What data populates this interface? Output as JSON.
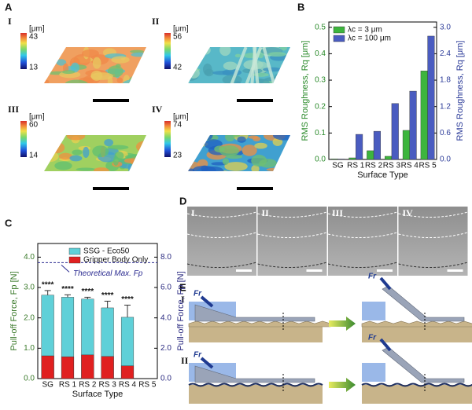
{
  "panels": {
    "A": {
      "label": "A",
      "maps": [
        {
          "label": "I",
          "unit": "[μm]",
          "max": 43,
          "min": 13
        },
        {
          "label": "II",
          "unit": "[μm]",
          "max": 56,
          "min": 42
        },
        {
          "label": "III",
          "unit": "[μm]",
          "max": 60,
          "min": 14
        },
        {
          "label": "IV",
          "unit": "[μm]",
          "max": 74,
          "min": 23
        }
      ]
    },
    "B": {
      "label": "B"
    },
    "C": {
      "label": "C"
    },
    "D": {
      "label": "D",
      "frames": [
        "I",
        "II",
        "III",
        "IV"
      ]
    },
    "E": {
      "label": "E",
      "rows": [
        {
          "label": "I",
          "forces": [
            "Fr",
            "Fr"
          ]
        },
        {
          "label": "II",
          "forces": [
            "Fr",
            "Fr"
          ]
        }
      ]
    }
  },
  "chart_data": [
    {
      "type": "bar",
      "barmode": "group",
      "categories": [
        "SG",
        "RS 1",
        "RS 2",
        "RS 3",
        "RS 4",
        "RS 5"
      ],
      "series": [
        {
          "name": "λc = 3 μm",
          "color": "#3db53d",
          "values": [
            0.002,
            0.006,
            0.033,
            0.012,
            0.11,
            0.335
          ]
        },
        {
          "name": "λc = 100 μm",
          "color": "#4a5cc0",
          "axis": "y2",
          "values": [
            0.01,
            0.57,
            0.64,
            1.27,
            1.55,
            2.8
          ]
        }
      ],
      "ylim": [
        0,
        0.52
      ],
      "yticks": [
        {
          "value": 0,
          "label": "0.0"
        },
        0.1,
        0.2,
        0.3,
        0.4,
        0.5
      ],
      "y2lim": [
        0,
        3.12
      ],
      "y2ticks": [
        {
          "value": 0,
          "label": "0.0"
        },
        0.6,
        1.2,
        1.8,
        2.4,
        {
          "value": 3,
          "label": "3.0"
        }
      ],
      "y_label": "RMS Roughness, Rq [μm]",
      "y2_label": "RMS Roughness, Rq [μm]",
      "x_label": "Surface Type",
      "legend": "upper left"
    },
    {
      "type": "bar",
      "barmode": "overlay",
      "categories": [
        "SG",
        "RS 1",
        "RS 2",
        "RS 3",
        "RS 4",
        "RS 5"
      ],
      "series": [
        {
          "name": "SSG - Eco50",
          "color": "#5fd0d8",
          "values": [
            2.75,
            2.68,
            2.62,
            2.33,
            2.02,
            0
          ],
          "errors": [
            0.15,
            0.08,
            0.06,
            0.22,
            0.4,
            null
          ]
        },
        {
          "name": "Gripper Body Only",
          "color": "#e02020",
          "values": [
            0.75,
            0.72,
            0.78,
            0.73,
            0.42,
            0
          ]
        }
      ],
      "significance": [
        "****",
        "****",
        "****",
        "****",
        "****",
        null
      ],
      "reference_line": {
        "value": 3.82,
        "label": "Theoretical Max. Fp"
      },
      "ylim": [
        0,
        4.45
      ],
      "yticks": [
        {
          "value": 0,
          "label": "0.0"
        },
        {
          "value": 1,
          "label": "1.0"
        },
        {
          "value": 2,
          "label": "2.0"
        },
        {
          "value": 3,
          "label": "3.0"
        },
        {
          "value": 4,
          "label": "4.0"
        }
      ],
      "y2lim": [
        0,
        8.9
      ],
      "y2ticks": [
        {
          "value": 0,
          "label": "0.0"
        },
        {
          "value": 2,
          "label": "2.0"
        },
        {
          "value": 4,
          "label": "4.0"
        },
        {
          "value": 6,
          "label": "6.0"
        },
        {
          "value": 8,
          "label": "8.0"
        }
      ],
      "y_label": "Pull-off Force, Fp [N]",
      "y2_label": "Pull-off Force, Fp [N]",
      "x_label": "Surface Type",
      "legend": "upper center"
    }
  ]
}
